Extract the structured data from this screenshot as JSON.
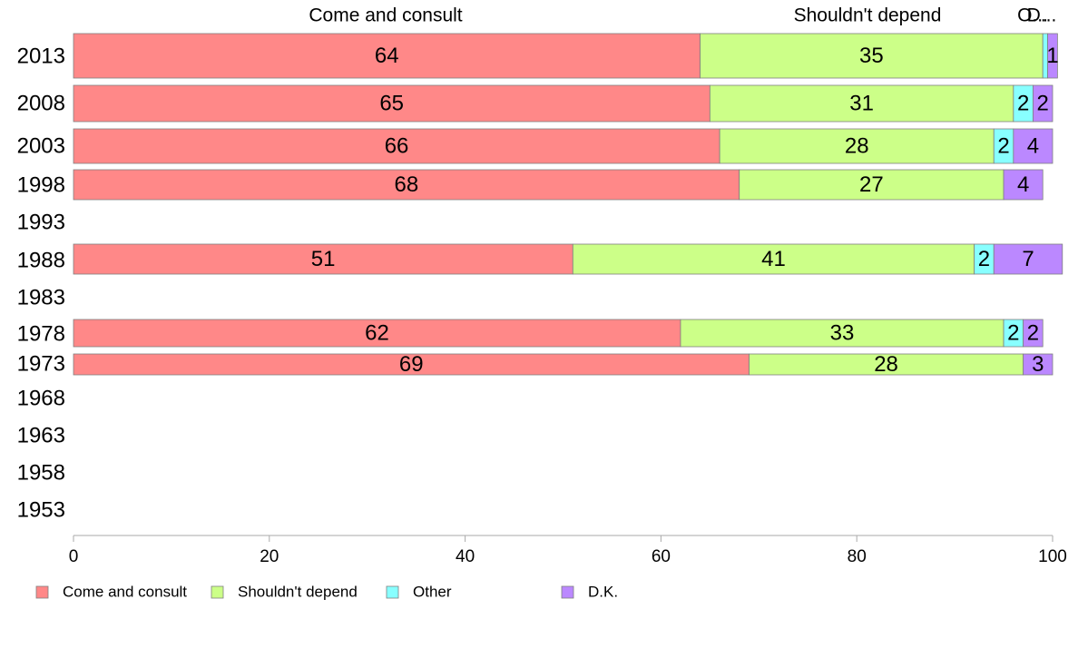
{
  "chart_data": {
    "type": "bar",
    "orientation": "horizontal",
    "stacked": true,
    "categories": [
      "2013",
      "2008",
      "2003",
      "1998",
      "1993",
      "1988",
      "1983",
      "1978",
      "1973",
      "1968",
      "1963",
      "1958",
      "1953"
    ],
    "series": [
      {
        "name": "Come and consult",
        "color": "#ff8888",
        "values": [
          64,
          65,
          66,
          68,
          null,
          51,
          null,
          62,
          69,
          null,
          null,
          null,
          null
        ]
      },
      {
        "name": "Shouldn't depend",
        "color": "#ccff88",
        "values": [
          35,
          31,
          28,
          27,
          null,
          41,
          null,
          33,
          28,
          null,
          null,
          null,
          null
        ]
      },
      {
        "name": "Other",
        "color": "#88ffff",
        "values": [
          0.5,
          2,
          2,
          0,
          null,
          2,
          null,
          2,
          0,
          null,
          null,
          null,
          null
        ]
      },
      {
        "name": "D.K.",
        "color": "#bb88ff",
        "values": [
          1,
          2,
          4,
          4,
          null,
          7,
          null,
          2,
          3,
          null,
          null,
          null,
          null
        ]
      }
    ],
    "segment_labels": [
      [
        "64",
        "35",
        "",
        "1"
      ],
      [
        "65",
        "31",
        "2",
        "2"
      ],
      [
        "66",
        "28",
        "2",
        "4"
      ],
      [
        "68",
        "27",
        "",
        "4"
      ],
      [
        "",
        "",
        "",
        ""
      ],
      [
        "51",
        "41",
        "2",
        "7"
      ],
      [
        "",
        "",
        "",
        ""
      ],
      [
        "62",
        "33",
        "2",
        "2"
      ],
      [
        "69",
        "28",
        "",
        "3"
      ],
      [
        "",
        "",
        "",
        ""
      ],
      [
        "",
        "",
        "",
        ""
      ],
      [
        "",
        "",
        "",
        ""
      ],
      [
        "",
        "",
        "",
        ""
      ]
    ],
    "top_labels": [
      "Come and consult",
      "Shouldn't depend",
      "O...",
      "D..."
    ],
    "xlim": [
      0,
      100
    ],
    "xticks": [
      "0",
      "20",
      "40",
      "60",
      "80",
      "100"
    ],
    "grid": false,
    "legend_position": "bottom-left"
  }
}
